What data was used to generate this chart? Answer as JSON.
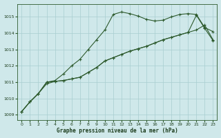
{
  "title": "Graphe pression niveau de la mer (hPa)",
  "bg_color": "#cfe8ea",
  "grid_color": "#a8cdd0",
  "line_color": "#2d5a2d",
  "xlim": [
    -0.5,
    23.5
  ],
  "ylim": [
    1008.7,
    1015.8
  ],
  "yticks": [
    1009,
    1010,
    1011,
    1012,
    1013,
    1014,
    1015
  ],
  "xticks": [
    0,
    1,
    2,
    3,
    4,
    5,
    6,
    7,
    8,
    9,
    10,
    11,
    12,
    13,
    14,
    15,
    16,
    17,
    18,
    19,
    20,
    21,
    22,
    23
  ],
  "series1": [
    1009.2,
    1009.8,
    1010.3,
    1011.0,
    1011.1,
    1011.5,
    1012.0,
    1012.4,
    1013.0,
    1013.6,
    1014.2,
    1015.15,
    1015.3,
    1015.2,
    1015.05,
    1014.85,
    1014.75,
    1014.8,
    1015.0,
    1015.15,
    1015.2,
    1015.15,
    1014.35,
    1014.1
  ],
  "series2": [
    1009.2,
    1009.8,
    1010.3,
    1010.9,
    1011.05,
    1011.1,
    1011.2,
    1011.3,
    1011.6,
    1011.9,
    1012.3,
    1012.5,
    1012.7,
    1012.9,
    1013.05,
    1013.2,
    1013.4,
    1013.6,
    1013.75,
    1013.9,
    1014.05,
    1014.2,
    1014.5,
    1013.6
  ],
  "series3": [
    1009.2,
    1009.8,
    1010.3,
    1011.0,
    1011.05,
    1011.1,
    1011.2,
    1011.3,
    1011.6,
    1011.9,
    1012.3,
    1012.5,
    1012.7,
    1012.9,
    1013.05,
    1013.2,
    1013.4,
    1013.6,
    1013.75,
    1013.9,
    1014.05,
    1015.1,
    1014.3,
    1013.55
  ]
}
